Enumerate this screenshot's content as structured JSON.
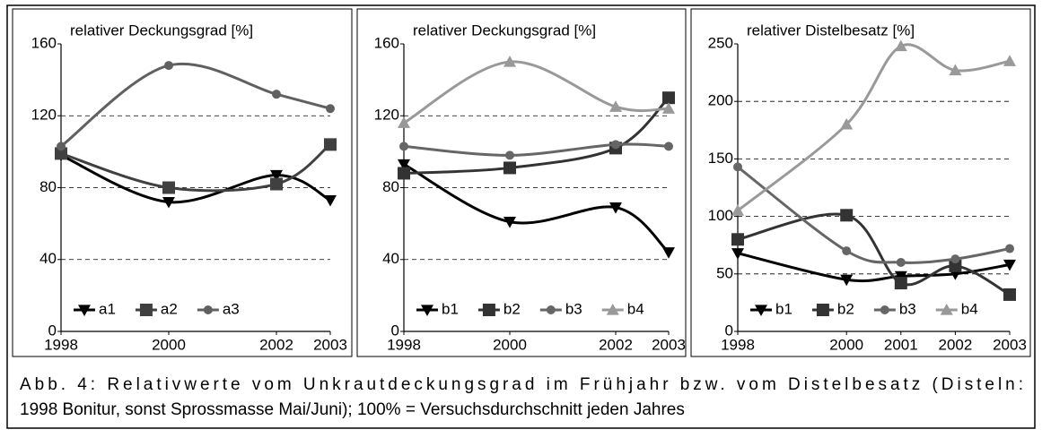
{
  "chart_data": [
    {
      "type": "line",
      "title": "relativer Deckungsgrad [%]",
      "x": [
        1998,
        2000,
        2002,
        2003
      ],
      "xlim": [
        1998,
        2003
      ],
      "xticks": [
        1998,
        2000,
        2002,
        2003
      ],
      "ylim": [
        0,
        160
      ],
      "yticks": [
        0,
        40,
        80,
        120,
        160
      ],
      "grid": true,
      "legend": "lower left",
      "series": [
        {
          "name": "a1",
          "color": "#000000",
          "marker": "triangle-down",
          "values": [
            98,
            72,
            87,
            73
          ]
        },
        {
          "name": "a2",
          "color": "#404040",
          "marker": "square",
          "values": [
            99,
            80,
            82,
            104
          ]
        },
        {
          "name": "a3",
          "color": "#606060",
          "marker": "circle",
          "values": [
            103,
            148,
            132,
            124
          ]
        }
      ]
    },
    {
      "type": "line",
      "title": "relativer Deckungsgrad [%]",
      "x": [
        1998,
        2000,
        2002,
        2003
      ],
      "xlim": [
        1998,
        2003
      ],
      "xticks": [
        1998,
        2000,
        2002,
        2003
      ],
      "ylim": [
        0,
        160
      ],
      "yticks": [
        0,
        40,
        80,
        120,
        160
      ],
      "grid": true,
      "legend": "lower left",
      "series": [
        {
          "name": "b1",
          "color": "#000000",
          "marker": "triangle-down",
          "values": [
            93,
            61,
            69,
            44
          ]
        },
        {
          "name": "b2",
          "color": "#333333",
          "marker": "square",
          "values": [
            88,
            91,
            102,
            130
          ]
        },
        {
          "name": "b3",
          "color": "#666666",
          "marker": "circle",
          "values": [
            103,
            98,
            104,
            103
          ]
        },
        {
          "name": "b4",
          "color": "#999999",
          "marker": "triangle-up",
          "values": [
            116,
            150,
            125,
            124
          ]
        }
      ]
    },
    {
      "type": "line",
      "title": "relativer Distelbesatz [%]",
      "x": [
        1998,
        2000,
        2001,
        2002,
        2003
      ],
      "xlim": [
        1998,
        2003
      ],
      "xticks": [
        1998,
        2000,
        2001,
        2002,
        2003
      ],
      "ylim": [
        0,
        250
      ],
      "yticks": [
        0,
        50,
        100,
        150,
        200,
        250
      ],
      "grid": true,
      "legend": "lower left",
      "series": [
        {
          "name": "b1",
          "color": "#000000",
          "marker": "triangle-down",
          "values": [
            68,
            45,
            48,
            50,
            58
          ]
        },
        {
          "name": "b2",
          "color": "#333333",
          "marker": "square",
          "values": [
            80,
            101,
            42,
            57,
            32
          ]
        },
        {
          "name": "b3",
          "color": "#666666",
          "marker": "circle",
          "values": [
            143,
            70,
            60,
            63,
            72
          ]
        },
        {
          "name": "b4",
          "color": "#999999",
          "marker": "triangle-up",
          "values": [
            105,
            180,
            248,
            227,
            235
          ]
        }
      ]
    }
  ],
  "caption": [
    "Abb. 4: Relativwerte vom Unkrautdeckungsgrad im Frühjahr bzw. vom Distelbesatz (Disteln:",
    "1998 Bonitur, sonst Sprossmasse Mai/Juni); 100% = Versuchsdurchschnitt jeden Jahres"
  ]
}
